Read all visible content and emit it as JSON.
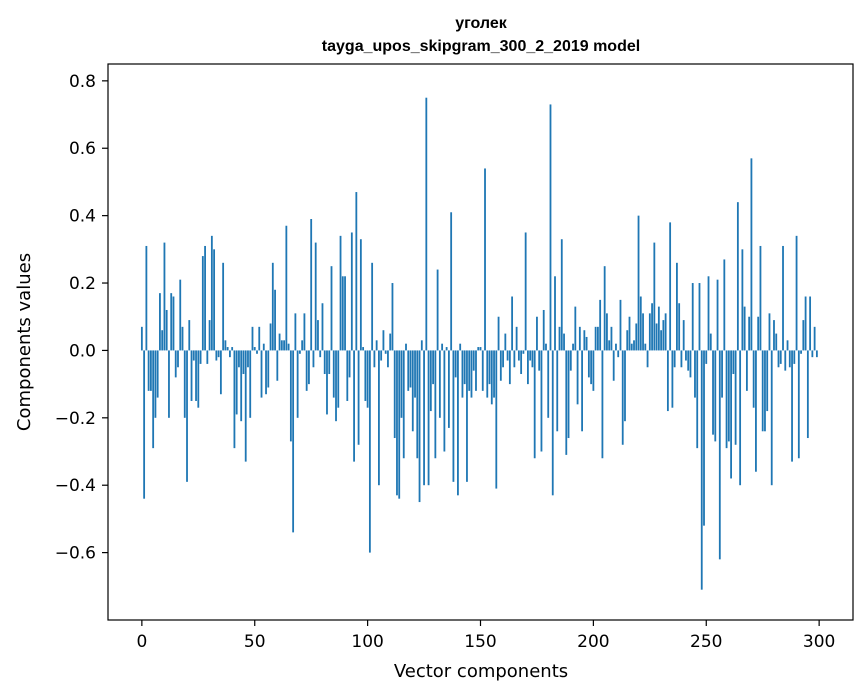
{
  "chart_data": {
    "type": "bar",
    "title_line1": "уголек",
    "title_line2": "tayga_upos_skipgram_300_2_2019 model",
    "xlabel": "Vector components",
    "ylabel": "Components values",
    "xlim": [
      -15,
      315
    ],
    "ylim": [
      -0.8,
      0.85
    ],
    "xticks": [
      0,
      50,
      100,
      150,
      200,
      250,
      300
    ],
    "xtick_labels": [
      "0",
      "50",
      "100",
      "150",
      "200",
      "250",
      "300"
    ],
    "yticks": [
      -0.6,
      -0.4,
      -0.2,
      0.0,
      0.2,
      0.4,
      0.6,
      0.8
    ],
    "ytick_labels": [
      "−0.6",
      "−0.4",
      "−0.2",
      "0.0",
      "0.2",
      "0.4",
      "0.6",
      "0.8"
    ],
    "bar_color": "#1f77b4",
    "values": [
      0.07,
      -0.44,
      0.31,
      -0.12,
      -0.12,
      -0.29,
      -0.2,
      -0.14,
      0.17,
      0.06,
      0.32,
      0.12,
      -0.2,
      0.17,
      0.16,
      -0.08,
      -0.05,
      0.21,
      0.07,
      -0.2,
      -0.39,
      0.09,
      -0.15,
      -0.03,
      -0.15,
      -0.17,
      -0.04,
      0.28,
      0.31,
      -0.04,
      0.09,
      0.34,
      0.3,
      -0.03,
      -0.02,
      -0.13,
      0.26,
      0.03,
      0.01,
      -0.02,
      0.01,
      -0.29,
      -0.19,
      -0.05,
      -0.21,
      -0.07,
      -0.33,
      -0.05,
      -0.2,
      0.07,
      0.01,
      -0.01,
      0.07,
      -0.14,
      0.02,
      -0.13,
      -0.11,
      0.08,
      0.26,
      0.18,
      -0.09,
      0.05,
      0.03,
      0.03,
      0.37,
      0.02,
      -0.27,
      -0.54,
      0.11,
      -0.2,
      -0.01,
      0.03,
      0.11,
      -0.12,
      -0.1,
      0.39,
      -0.05,
      0.32,
      0.09,
      -0.02,
      0.14,
      -0.07,
      -0.19,
      -0.07,
      0.25,
      -0.14,
      -0.21,
      -0.17,
      0.34,
      0.22,
      0.22,
      -0.15,
      -0.08,
      0.35,
      -0.33,
      0.47,
      -0.28,
      0.33,
      0.01,
      -0.15,
      -0.17,
      -0.6,
      0.26,
      -0.05,
      0.03,
      -0.4,
      -0.03,
      0.06,
      -0.01,
      -0.05,
      0.05,
      0.2,
      -0.26,
      -0.43,
      -0.44,
      -0.2,
      -0.32,
      0.02,
      -0.12,
      -0.11,
      -0.24,
      -0.14,
      -0.32,
      -0.45,
      0.03,
      -0.4,
      0.75,
      -0.4,
      -0.18,
      -0.1,
      -0.32,
      0.24,
      -0.2,
      0.02,
      -0.3,
      0.01,
      -0.23,
      0.41,
      -0.39,
      -0.08,
      -0.43,
      0.02,
      -0.14,
      -0.1,
      -0.39,
      -0.12,
      -0.14,
      -0.06,
      -0.12,
      0.01,
      0.01,
      -0.12,
      0.54,
      -0.14,
      -0.1,
      -0.16,
      -0.14,
      -0.41,
      0.1,
      -0.09,
      -0.05,
      0.05,
      -0.03,
      -0.1,
      0.16,
      -0.05,
      0.07,
      -0.03,
      -0.07,
      -0.01,
      0.35,
      -0.1,
      -0.03,
      -0.05,
      -0.32,
      0.1,
      -0.06,
      -0.3,
      0.12,
      0.02,
      -0.2,
      0.73,
      -0.43,
      0.22,
      -0.24,
      0.07,
      0.33,
      0.05,
      -0.31,
      -0.26,
      -0.06,
      0.02,
      0.13,
      -0.16,
      0.07,
      -0.24,
      0.06,
      0.04,
      -0.08,
      -0.1,
      -0.12,
      0.07,
      0.07,
      0.15,
      -0.32,
      0.25,
      0.11,
      0.03,
      0.07,
      -0.09,
      0.02,
      -0.02,
      0.15,
      -0.28,
      -0.21,
      0.06,
      0.1,
      0.02,
      0.03,
      0.08,
      0.4,
      0.16,
      0.11,
      0.02,
      -0.05,
      0.11,
      0.14,
      0.32,
      0.08,
      0.13,
      0.06,
      0.09,
      0.11,
      -0.18,
      0.38,
      -0.17,
      -0.05,
      0.26,
      0.14,
      -0.05,
      0.09,
      -0.03,
      -0.06,
      -0.08,
      0.2,
      -0.14,
      -0.29,
      0.2,
      -0.71,
      -0.52,
      -0.04,
      0.22,
      0.05,
      -0.25,
      -0.27,
      0.21,
      -0.62,
      -0.14,
      0.27,
      -0.29,
      -0.27,
      -0.38,
      -0.07,
      -0.28,
      0.44,
      -0.4,
      0.3,
      0.13,
      -0.12,
      0.1,
      0.57,
      -0.17,
      -0.36,
      0.1,
      0.31,
      -0.24,
      -0.24,
      -0.18,
      0.11,
      -0.4,
      0.09,
      0.05,
      -0.05,
      -0.04,
      0.31,
      -0.06,
      0.03,
      -0.05,
      -0.33,
      -0.04,
      0.34,
      -0.32,
      -0.01,
      0.09,
      0.16,
      -0.26,
      0.16,
      -0.02,
      0.07,
      -0.02
    ]
  }
}
